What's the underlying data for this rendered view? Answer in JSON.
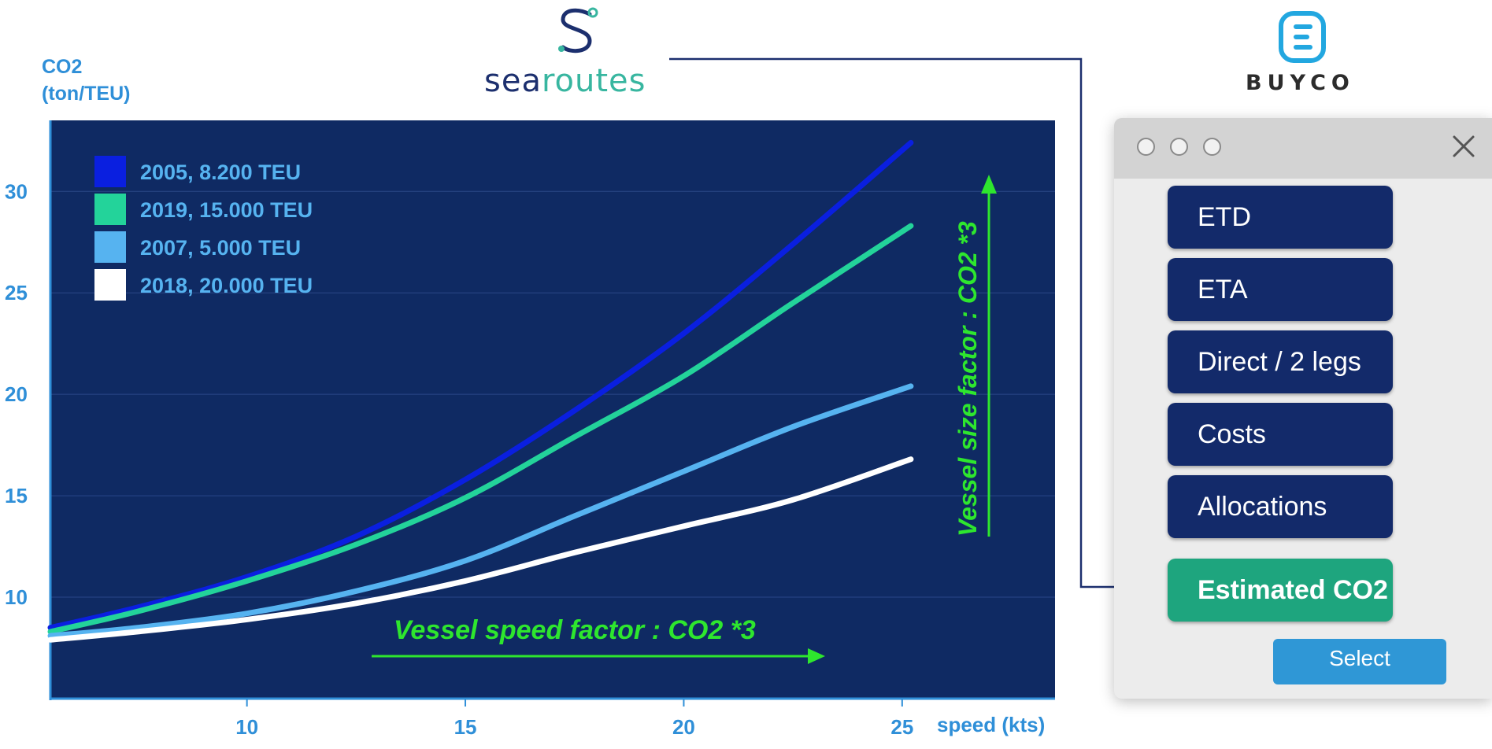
{
  "chart_data": {
    "type": "line",
    "ylabel_line1": "CO2",
    "ylabel_line2": "(ton/TEU)",
    "xlabel": "speed (kts)",
    "xlim": [
      5.5,
      28.5
    ],
    "ylim": [
      5,
      33.5
    ],
    "xticks": [
      10,
      15,
      20,
      25
    ],
    "yticks": [
      10,
      15,
      20,
      25,
      30
    ],
    "grid": true,
    "legend_position": "top-left",
    "background_color": "#0f2a63",
    "series": [
      {
        "name": "2005, 8.200 TEU",
        "color": "#0a1fe0",
        "points": [
          [
            5.5,
            8.5
          ],
          [
            7.5,
            9.5
          ],
          [
            10,
            11.0
          ],
          [
            12.5,
            13.0
          ],
          [
            15,
            15.8
          ],
          [
            17.5,
            19.2
          ],
          [
            20,
            23.0
          ],
          [
            22.5,
            27.4
          ],
          [
            25.2,
            32.4
          ]
        ]
      },
      {
        "name": "2019, 15.000 TEU",
        "color": "#23d39a",
        "points": [
          [
            5.5,
            8.3
          ],
          [
            7.5,
            9.3
          ],
          [
            10,
            10.8
          ],
          [
            12.5,
            12.6
          ],
          [
            15,
            14.9
          ],
          [
            17.5,
            17.9
          ],
          [
            20,
            20.9
          ],
          [
            22.5,
            24.5
          ],
          [
            25.2,
            28.3
          ]
        ]
      },
      {
        "name": "2007, 5.000 TEU",
        "color": "#56b3f0",
        "points": [
          [
            5.5,
            8.1
          ],
          [
            7.5,
            8.5
          ],
          [
            10,
            9.2
          ],
          [
            12.5,
            10.3
          ],
          [
            15,
            11.8
          ],
          [
            17.5,
            14.0
          ],
          [
            20,
            16.2
          ],
          [
            22.5,
            18.4
          ],
          [
            25.2,
            20.4
          ]
        ]
      },
      {
        "name": "2018, 20.000 TEU",
        "color": "#ffffff",
        "points": [
          [
            5.5,
            7.9
          ],
          [
            7.5,
            8.3
          ],
          [
            10,
            8.9
          ],
          [
            12.5,
            9.7
          ],
          [
            15,
            10.8
          ],
          [
            17.5,
            12.2
          ],
          [
            20,
            13.5
          ],
          [
            22.5,
            14.8
          ],
          [
            25.2,
            16.8
          ]
        ]
      }
    ],
    "annotations": [
      {
        "text": "Vessel speed factor : CO2 *3",
        "color": "#2ee62e"
      },
      {
        "text": "Vessel size factor : CO2 *3",
        "color": "#2ee62e"
      }
    ]
  },
  "brand": {
    "searoutes_part1": "sea",
    "searoutes_part2": "routes",
    "searoutes_color1": "#1c2f6e",
    "searoutes_color2": "#38b6a0",
    "buyco": "BUYCO",
    "icons": [
      "searoutes-logo-icon",
      "buyco-logo-icon"
    ]
  },
  "panel": {
    "buttons": [
      "ETD",
      "ETA",
      "Direct / 2 legs",
      "Costs",
      "Allocations",
      "Estimated CO2"
    ],
    "active_button": "Estimated CO2",
    "select_label": "Select",
    "accent": "#1ea57e",
    "button_color": "#132a6a",
    "select_color": "#2f97d6"
  }
}
